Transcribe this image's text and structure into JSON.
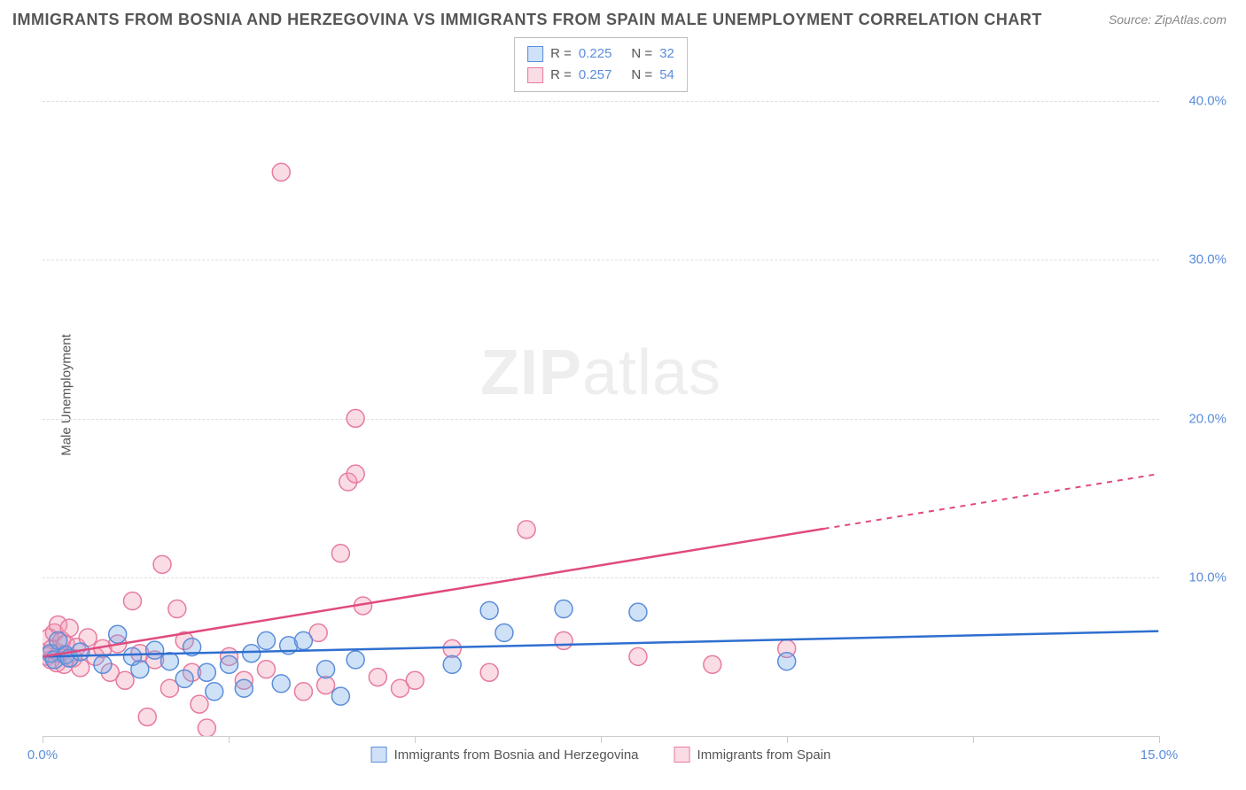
{
  "title": "IMMIGRANTS FROM BOSNIA AND HERZEGOVINA VS IMMIGRANTS FROM SPAIN MALE UNEMPLOYMENT CORRELATION CHART",
  "source": "Source: ZipAtlas.com",
  "watermark": {
    "bold": "ZIP",
    "light": "atlas"
  },
  "y_axis_label": "Male Unemployment",
  "chart": {
    "type": "scatter",
    "xlim": [
      0,
      15
    ],
    "ylim": [
      0,
      44
    ],
    "x_ticks": [
      0,
      2.5,
      5,
      7.5,
      10,
      12.5,
      15
    ],
    "x_tick_labels": [
      "0.0%",
      "",
      "",
      "",
      "",
      "",
      "15.0%"
    ],
    "y_ticks": [
      10,
      20,
      30,
      40
    ],
    "y_tick_labels": [
      "10.0%",
      "20.0%",
      "30.0%",
      "40.0%"
    ],
    "grid_color": "#dddddd",
    "background": "#ffffff",
    "series": [
      {
        "name": "Immigrants from Bosnia and Herzegovina",
        "fill": "rgba(118,168,228,0.35)",
        "stroke": "#5b8ddb",
        "line_color": "#2f6fd0",
        "marker_radius": 10,
        "R": "0.225",
        "N": "32",
        "trend": {
          "y_at_x0": 5.0,
          "y_at_xmax": 6.6,
          "solid_until_x": 15.0
        },
        "points": [
          [
            0.1,
            5.2
          ],
          [
            0.15,
            4.8
          ],
          [
            0.2,
            6.0
          ],
          [
            0.3,
            5.1
          ],
          [
            0.35,
            4.9
          ],
          [
            0.5,
            5.3
          ],
          [
            0.8,
            4.5
          ],
          [
            1.0,
            6.4
          ],
          [
            1.2,
            5.0
          ],
          [
            1.3,
            4.2
          ],
          [
            1.5,
            5.4
          ],
          [
            1.7,
            4.7
          ],
          [
            1.9,
            3.6
          ],
          [
            2.0,
            5.6
          ],
          [
            2.2,
            4.0
          ],
          [
            2.3,
            2.8
          ],
          [
            2.5,
            4.5
          ],
          [
            2.7,
            3.0
          ],
          [
            2.8,
            5.2
          ],
          [
            3.0,
            6.0
          ],
          [
            3.2,
            3.3
          ],
          [
            3.3,
            5.7
          ],
          [
            3.5,
            6.0
          ],
          [
            3.8,
            4.2
          ],
          [
            4.0,
            2.5
          ],
          [
            4.2,
            4.8
          ],
          [
            5.5,
            4.5
          ],
          [
            6.0,
            7.9
          ],
          [
            6.2,
            6.5
          ],
          [
            7.0,
            8.0
          ],
          [
            8.0,
            7.8
          ],
          [
            10.0,
            4.7
          ]
        ]
      },
      {
        "name": "Immigrants from Spain",
        "fill": "rgba(242,156,180,0.35)",
        "stroke": "#e77ba0",
        "line_color": "#e04a7e",
        "marker_radius": 10,
        "R": "0.257",
        "N": "54",
        "trend": {
          "y_at_x0": 5.0,
          "y_at_xmax": 16.5,
          "solid_until_x": 10.5
        },
        "points": [
          [
            0.05,
            5.0
          ],
          [
            0.08,
            6.2
          ],
          [
            0.1,
            4.8
          ],
          [
            0.12,
            5.5
          ],
          [
            0.15,
            6.5
          ],
          [
            0.18,
            4.6
          ],
          [
            0.2,
            7.0
          ],
          [
            0.22,
            5.2
          ],
          [
            0.25,
            6.0
          ],
          [
            0.28,
            4.5
          ],
          [
            0.3,
            5.8
          ],
          [
            0.35,
            6.8
          ],
          [
            0.4,
            4.9
          ],
          [
            0.45,
            5.6
          ],
          [
            0.5,
            4.3
          ],
          [
            0.6,
            6.2
          ],
          [
            0.7,
            5.0
          ],
          [
            0.8,
            5.5
          ],
          [
            0.9,
            4.0
          ],
          [
            1.0,
            5.8
          ],
          [
            1.1,
            3.5
          ],
          [
            1.2,
            8.5
          ],
          [
            1.3,
            5.2
          ],
          [
            1.4,
            1.2
          ],
          [
            1.5,
            4.8
          ],
          [
            1.6,
            10.8
          ],
          [
            1.7,
            3.0
          ],
          [
            1.8,
            8.0
          ],
          [
            1.9,
            6.0
          ],
          [
            2.0,
            4.0
          ],
          [
            2.1,
            2.0
          ],
          [
            2.2,
            0.5
          ],
          [
            2.5,
            5.0
          ],
          [
            2.7,
            3.5
          ],
          [
            3.0,
            4.2
          ],
          [
            3.2,
            35.5
          ],
          [
            3.5,
            2.8
          ],
          [
            3.7,
            6.5
          ],
          [
            3.8,
            3.2
          ],
          [
            4.0,
            11.5
          ],
          [
            4.1,
            16.0
          ],
          [
            4.2,
            16.5
          ],
          [
            4.2,
            20.0
          ],
          [
            4.3,
            8.2
          ],
          [
            4.5,
            3.7
          ],
          [
            4.8,
            3.0
          ],
          [
            5.0,
            3.5
          ],
          [
            5.5,
            5.5
          ],
          [
            6.0,
            4.0
          ],
          [
            6.5,
            13.0
          ],
          [
            7.0,
            6.0
          ],
          [
            8.0,
            5.0
          ],
          [
            9.0,
            4.5
          ],
          [
            10.0,
            5.5
          ]
        ]
      }
    ]
  },
  "bottom_legend": [
    {
      "label": "Immigrants from Bosnia and Herzegovina",
      "fill": "rgba(118,168,228,0.35)",
      "stroke": "#5b8ddb"
    },
    {
      "label": "Immigrants from Spain",
      "fill": "rgba(242,156,180,0.35)",
      "stroke": "#e77ba0"
    }
  ]
}
